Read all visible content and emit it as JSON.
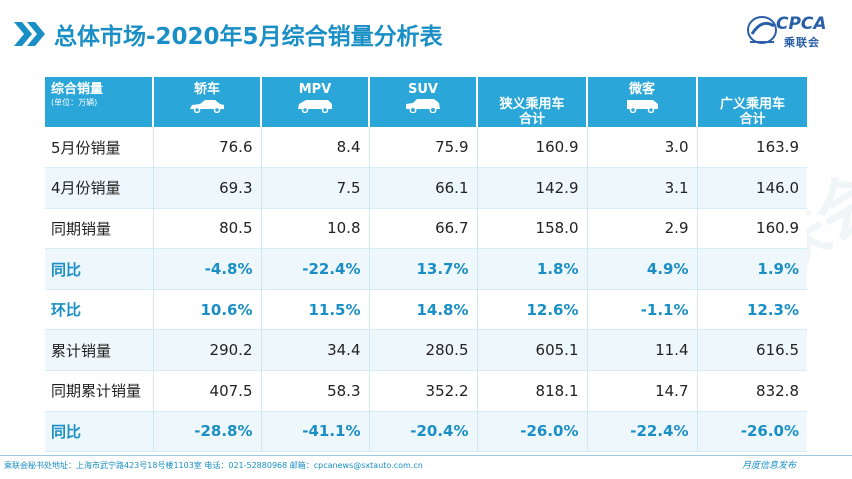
{
  "title": "总体市场-2020年5月综合销量分析表",
  "logo": {
    "text": "CPCA",
    "subtext": "乘联会"
  },
  "table": {
    "corner_label": "综合销量",
    "corner_sub": "(单位：万辆)",
    "columns": [
      "轿车",
      "MPV",
      "SUV",
      "狭义乘用车\n合计",
      "微客",
      "广义乘用车\n合计"
    ],
    "column_icons": [
      "sedan-icon",
      "mpv-icon",
      "suv-icon",
      "",
      "minivan-icon",
      ""
    ],
    "rows": [
      {
        "label": "5月份销量",
        "values": [
          "76.6",
          "8.4",
          "75.9",
          "160.9",
          "3.0",
          "163.9"
        ],
        "pct": false
      },
      {
        "label": "4月份销量",
        "values": [
          "69.3",
          "7.5",
          "66.1",
          "142.9",
          "3.1",
          "146.0"
        ],
        "pct": false
      },
      {
        "label": "同期销量",
        "values": [
          "80.5",
          "10.8",
          "66.7",
          "158.0",
          "2.9",
          "160.9"
        ],
        "pct": false
      },
      {
        "label": "同比",
        "values": [
          "-4.8%",
          "-22.4%",
          "13.7%",
          "1.8%",
          "4.9%",
          "1.9%"
        ],
        "pct": true
      },
      {
        "label": "环比",
        "values": [
          "10.6%",
          "11.5%",
          "14.8%",
          "12.6%",
          "-1.1%",
          "12.3%"
        ],
        "pct": true
      },
      {
        "label": "累计销量",
        "values": [
          "290.2",
          "34.4",
          "280.5",
          "605.1",
          "11.4",
          "616.5"
        ],
        "pct": false
      },
      {
        "label": "同期累计销量",
        "values": [
          "407.5",
          "58.3",
          "352.2",
          "818.1",
          "14.7",
          "832.8"
        ],
        "pct": false
      },
      {
        "label": "同比",
        "values": [
          "-28.8%",
          "-41.1%",
          "-20.4%",
          "-26.0%",
          "-22.4%",
          "-26.0%"
        ],
        "pct": true
      }
    ]
  },
  "watermark": "CPCA乘联会",
  "footer": {
    "left": "乘联会秘书处地址：上海市武宁路423号18号楼1103室   电话：021-52880968   邮箱：cpcanews@sxtauto.com.cn",
    "right": "月度信息发布"
  },
  "colors": {
    "accent": "#1a8fc6",
    "header_bg": "#2aa6d8",
    "row_alt": "#eef7fb"
  }
}
